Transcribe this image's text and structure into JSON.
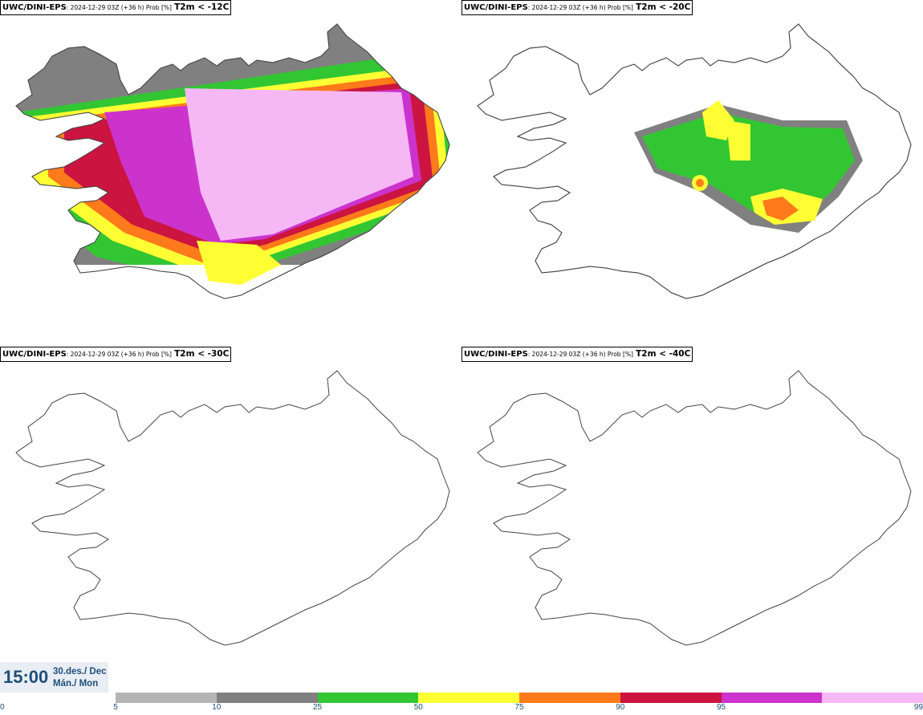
{
  "panels": [
    {
      "model": "UWC/DINI-EPS",
      "run": ": 2024-12-29 03Z (+36 h) Prob [%]",
      "variable": "T2m < -12C",
      "coverage": "extensive"
    },
    {
      "model": "UWC/DINI-EPS",
      "run": ": 2024-12-29 03Z (+36 h) Prob [%]",
      "variable": "T2m < -20C",
      "coverage": "moderate"
    },
    {
      "model": "UWC/DINI-EPS",
      "run": ": 2024-12-29 03Z (+36 h) Prob [%]",
      "variable": "T2m < -30C",
      "coverage": "none"
    },
    {
      "model": "UWC/DINI-EPS",
      "run": ": 2024-12-29 03Z (+36 h) Prob [%]",
      "variable": "T2m < -40C",
      "coverage": "none"
    }
  ],
  "valid_time": {
    "time": "15:00",
    "date_line1": "30.des./ Dec",
    "date_line2": "Mán./ Mon"
  },
  "colorbar": {
    "ticks": [
      "0",
      "5",
      "10",
      "25",
      "50",
      "75",
      "90",
      "95",
      "99"
    ],
    "colors": [
      "#b5b5b5",
      "#808080",
      "#33c633",
      "#ffff33",
      "#ff7a1a",
      "#cc1440",
      "#cc33cc",
      "#f5b8f5"
    ]
  }
}
